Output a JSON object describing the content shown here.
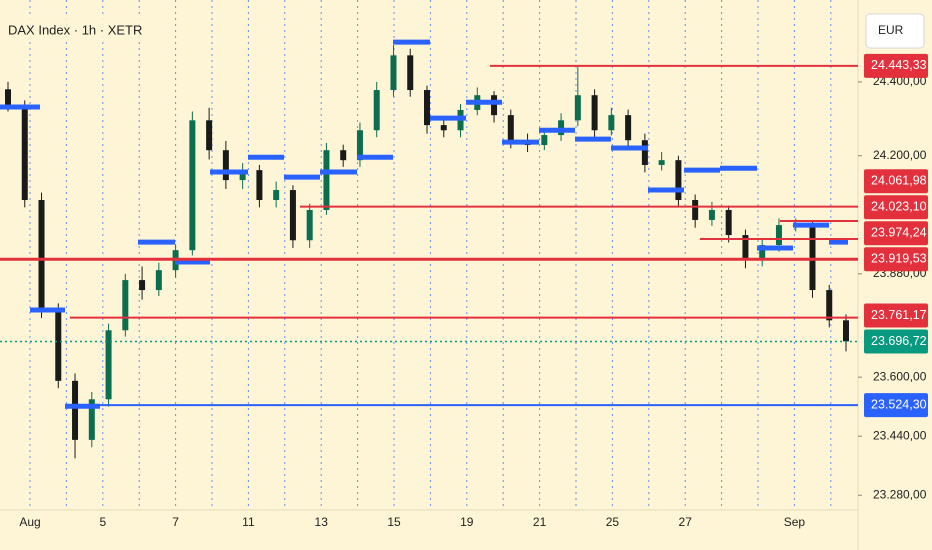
{
  "chart_data": {
    "type": "candlestick",
    "title": "DAX Index · 1h · XETR",
    "currency": "EUR",
    "categories": [
      "Aug",
      null,
      "5",
      null,
      "7",
      null,
      "11",
      null,
      "13",
      null,
      "15",
      null,
      "19",
      null,
      "21",
      null,
      "25",
      null,
      "27",
      null,
      null,
      "Sep",
      null
    ],
    "ylim": [
      23240,
      24622
    ],
    "yticks": [
      {
        "value": 24400,
        "label": "24.400,00"
      },
      {
        "value": 24200,
        "label": "24.200,00"
      },
      {
        "value": 23880,
        "label": "23.880,00"
      },
      {
        "value": 23600,
        "label": "23.600,00"
      },
      {
        "value": 23440,
        "label": "23.440,00"
      },
      {
        "value": 23280,
        "label": "23.280,00"
      }
    ],
    "grid": true,
    "up_color": "#0b6e4f",
    "down_color": "#1a1a1a",
    "candles": [
      [
        24380,
        24400,
        24320,
        24337
      ],
      [
        24337,
        24350,
        24060,
        24080
      ],
      [
        24080,
        24100,
        23760,
        23780
      ],
      [
        23780,
        23800,
        23570,
        23590
      ],
      [
        23590,
        23610,
        23380,
        23430
      ],
      [
        23430,
        23560,
        23410,
        23540
      ],
      [
        23540,
        23745,
        23520,
        23727
      ],
      [
        23727,
        23880,
        23710,
        23863
      ],
      [
        23863,
        23900,
        23810,
        23836
      ],
      [
        23836,
        23910,
        23820,
        23890
      ],
      [
        23890,
        23960,
        23870,
        23944
      ],
      [
        23944,
        24320,
        23930,
        24296
      ],
      [
        24296,
        24330,
        24190,
        24215
      ],
      [
        24215,
        24240,
        24110,
        24134
      ],
      [
        24134,
        24180,
        24110,
        24161
      ],
      [
        24161,
        24175,
        24060,
        24080
      ],
      [
        24080,
        24130,
        24060,
        24107
      ],
      [
        24107,
        24120,
        23950,
        23971
      ],
      [
        23971,
        24070,
        23950,
        24053
      ],
      [
        24053,
        24235,
        24040,
        24215
      ],
      [
        24215,
        24230,
        24170,
        24188
      ],
      [
        24188,
        24290,
        24170,
        24269
      ],
      [
        24269,
        24400,
        24250,
        24378
      ],
      [
        24378,
        24500,
        24360,
        24472
      ],
      [
        24472,
        24490,
        24360,
        24378
      ],
      [
        24378,
        24390,
        24260,
        24283
      ],
      [
        24283,
        24300,
        24250,
        24269
      ],
      [
        24269,
        24340,
        24250,
        24324
      ],
      [
        24324,
        24385,
        24310,
        24364
      ],
      [
        24364,
        24375,
        24290,
        24310
      ],
      [
        24310,
        24325,
        24220,
        24242
      ],
      [
        24242,
        24260,
        24210,
        24229
      ],
      [
        24229,
        24275,
        24215,
        24256
      ],
      [
        24256,
        24315,
        24240,
        24296
      ],
      [
        24296,
        24440,
        24280,
        24364
      ],
      [
        24364,
        24380,
        24250,
        24269
      ],
      [
        24269,
        24330,
        24255,
        24310
      ],
      [
        24310,
        24325,
        24220,
        24242
      ],
      [
        24242,
        24260,
        24155,
        24175
      ],
      [
        24175,
        24210,
        24160,
        24188
      ],
      [
        24188,
        24200,
        24060,
        24080
      ],
      [
        24080,
        24095,
        24005,
        24026
      ],
      [
        24026,
        24075,
        24010,
        24053
      ],
      [
        24053,
        24065,
        23965,
        23985
      ],
      [
        23985,
        24000,
        23895,
        23917
      ],
      [
        23917,
        23975,
        23900,
        23958
      ],
      [
        23958,
        24030,
        23940,
        24012
      ],
      [
        24012,
        24030,
        23995,
        24012
      ],
      [
        24012,
        24025,
        23815,
        23836
      ],
      [
        23836,
        23850,
        23735,
        23754
      ],
      [
        23754,
        23770,
        23670,
        23697
      ]
    ],
    "levels": [
      {
        "value": 24443.33,
        "label": "24.443,33",
        "color": "#e3303d"
      },
      {
        "value": 24061.98,
        "label": "24.061,98",
        "color": "#e3303d"
      },
      {
        "value": 24023.1,
        "label": "24.023,10",
        "color": "#e3303d"
      },
      {
        "value": 23974.24,
        "label": "23.974,24",
        "color": "#e3303d"
      },
      {
        "value": 23919.53,
        "label": "23.919,53",
        "color": "#e3303d"
      },
      {
        "value": 23761.17,
        "label": "23.761,17",
        "color": "#e3303d"
      },
      {
        "value": 23696.72,
        "label": "23.696,72",
        "color": "#089981"
      },
      {
        "value": 23524.3,
        "label": "23.524,30",
        "color": "#2962ff"
      }
    ],
    "pivot_color": "#2962ff",
    "pivots": [
      24332,
      23782,
      23521,
      23966,
      23912,
      24156,
      24196,
      24142,
      24156,
      24196,
      24508,
      24302,
      24345,
      24237,
      24269,
      24245,
      24221,
      24107,
      24161,
      24166,
      23950,
      24012,
      23966
    ]
  }
}
